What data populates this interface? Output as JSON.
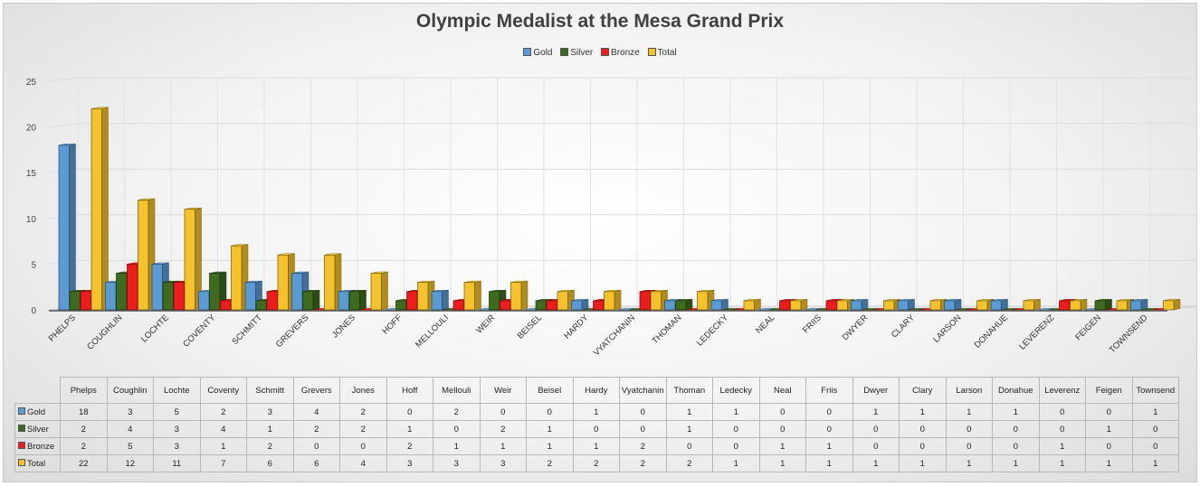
{
  "chart_data": {
    "type": "bar",
    "title": "Olympic Medalist at the Mesa Grand Prix",
    "categories": [
      "Phelps",
      "Coughlin",
      "Lochte",
      "Coventy",
      "Schmitt",
      "Grevers",
      "Jones",
      "Hoff",
      "Mellouli",
      "Weir",
      "Beisel",
      "Hardy",
      "Vyatchanin",
      "Thoman",
      "Ledecky",
      "Neal",
      "Friis",
      "Dwyer",
      "Clary",
      "Larson",
      "Donahue",
      "Leverenz",
      "Feigen",
      "Townsend"
    ],
    "axis_categories": [
      "PHELPS",
      "COUGHLIN",
      "LOCHTE",
      "COVENTY",
      "SCHMITT",
      "GREVERS",
      "JONES",
      "HOFF",
      "MELLOULI",
      "WEIR",
      "BEISEL",
      "HARDY",
      "VYATCHANIN",
      "THOMAN",
      "LEDECKY",
      "NEAL",
      "FRIIS",
      "DWYER",
      "CLARY",
      "LARSON",
      "DONAHUE",
      "LEVERENZ",
      "FEIGEN",
      "TOWNSEND"
    ],
    "series": [
      {
        "name": "Gold",
        "color": "#5b9bd5",
        "values": [
          18,
          3,
          5,
          2,
          3,
          4,
          2,
          0,
          2,
          0,
          0,
          1,
          0,
          1,
          1,
          0,
          0,
          1,
          1,
          1,
          1,
          0,
          0,
          1
        ]
      },
      {
        "name": "Silver",
        "color": "#3f6b1e",
        "values": [
          2,
          4,
          3,
          4,
          1,
          2,
          2,
          1,
          0,
          2,
          1,
          0,
          0,
          1,
          0,
          0,
          0,
          0,
          0,
          0,
          0,
          0,
          1,
          0
        ]
      },
      {
        "name": "Bronze",
        "color": "#ee1c1c",
        "values": [
          2,
          5,
          3,
          1,
          2,
          0,
          0,
          2,
          1,
          1,
          1,
          1,
          2,
          0,
          0,
          1,
          1,
          0,
          0,
          0,
          0,
          1,
          0,
          0
        ]
      },
      {
        "name": "Total",
        "color": "#f5c22b",
        "values": [
          22,
          12,
          11,
          7,
          6,
          6,
          4,
          3,
          3,
          3,
          2,
          2,
          2,
          2,
          1,
          1,
          1,
          1,
          1,
          1,
          1,
          1,
          1,
          1
        ]
      }
    ],
    "ylim": [
      0,
      25
    ],
    "y_ticks": [
      0,
      5,
      10,
      15,
      20,
      25
    ],
    "legend_position": "top",
    "grid": true
  }
}
